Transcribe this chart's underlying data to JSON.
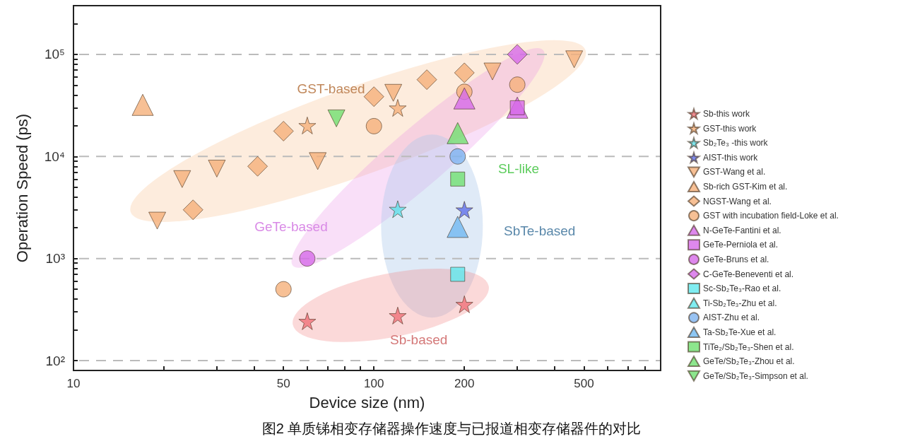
{
  "chart_data": {
    "type": "scatter",
    "xlabel": "Device size (nm)",
    "ylabel": "Operation Speed (ps)",
    "log": "xy",
    "legend": "right",
    "grid": "y",
    "xlim": [
      10,
      900
    ],
    "ylim": [
      80,
      300000
    ],
    "xticks": [
      10,
      {
        "value": 20,
        "label": null
      },
      {
        "value": 30,
        "label": null
      },
      {
        "value": 40,
        "label": null
      },
      50,
      {
        "value": 60,
        "label": null
      },
      {
        "value": 70,
        "label": null
      },
      {
        "value": 80,
        "label": null
      },
      {
        "value": 90,
        "label": null
      },
      100,
      200,
      {
        "value": 300,
        "label": null
      },
      {
        "value": 400,
        "label": null
      },
      500,
      {
        "value": 600,
        "label": null
      },
      {
        "value": 700,
        "label": null
      },
      {
        "value": 800,
        "label": null
      }
    ],
    "yticks": [
      {
        "value": 100,
        "label": "10²"
      },
      {
        "value": 200,
        "label": null
      },
      {
        "value": 300,
        "label": null
      },
      {
        "value": 400,
        "label": null
      },
      {
        "value": 500,
        "label": null
      },
      {
        "value": 600,
        "label": null
      },
      {
        "value": 700,
        "label": null
      },
      {
        "value": 800,
        "label": null
      },
      {
        "value": 900,
        "label": null
      },
      {
        "value": 1000,
        "label": "10³"
      },
      {
        "value": 2000,
        "label": null
      },
      {
        "value": 3000,
        "label": null
      },
      {
        "value": 4000,
        "label": null
      },
      {
        "value": 5000,
        "label": null
      },
      {
        "value": 6000,
        "label": null
      },
      {
        "value": 7000,
        "label": null
      },
      {
        "value": 8000,
        "label": null
      },
      {
        "value": 9000,
        "label": null
      },
      {
        "value": 10000,
        "label": "10⁴"
      },
      {
        "value": 20000,
        "label": null
      },
      {
        "value": 30000,
        "label": null
      },
      {
        "value": 40000,
        "label": null
      },
      {
        "value": 50000,
        "label": null
      },
      {
        "value": 60000,
        "label": null
      },
      {
        "value": 70000,
        "label": null
      },
      {
        "value": 80000,
        "label": null
      },
      {
        "value": 90000,
        "label": null
      },
      {
        "value": 100000,
        "label": "10⁵"
      },
      {
        "value": 200000,
        "label": null
      }
    ],
    "annotations": [
      "GST-based",
      "GeTe-based",
      "SL-like",
      "SbTe-based",
      "Sb-based",
      "图2 单质锑相变存储器操作速度与已报道相变存储器件的对比"
    ],
    "series": [
      {
        "name": "Sb-this work",
        "color": "#f07078",
        "marker": "star",
        "x": [
          60,
          120,
          200
        ],
        "values": [
          243,
          276,
          356
        ]
      },
      {
        "name": "GST-this work",
        "color": "#f5b07a",
        "marker": "star",
        "x": [
          60,
          120
        ],
        "values": [
          20100,
          29900
        ]
      },
      {
        "name": "Sb₂Te₃ -this work",
        "color": "#5fe0e8",
        "marker": "star",
        "x": [
          120
        ],
        "values": [
          3040
        ]
      },
      {
        "name": "AIST-this work",
        "color": "#6070e8",
        "marker": "star",
        "x": [
          200
        ],
        "values": [
          3000
        ]
      },
      {
        "name": "GST-Wang et al.",
        "color": "#f5b07a",
        "marker": "triangle-down",
        "x": [
          19,
          23,
          30,
          65,
          116,
          248,
          464
        ],
        "values": [
          2350,
          6000,
          7600,
          9000,
          42000,
          68000,
          89500
        ]
      },
      {
        "name": "Sb-rich GST-Kim et al.",
        "color": "#f5b07a",
        "marker": "triangle",
        "x": [
          17
        ],
        "values": [
          32000
        ]
      },
      {
        "name": "NGST-Wang et al.",
        "color": "#f5b07a",
        "marker": "diamond",
        "x": [
          25,
          41,
          50,
          100,
          150,
          200
        ],
        "values": [
          3000,
          8000,
          17700,
          38500,
          56500,
          66000
        ]
      },
      {
        "name": "GST with incubation field-Loke et al.",
        "color": "#f5b07a",
        "marker": "circle",
        "x": [
          50,
          100,
          200,
          300
        ],
        "values": [
          500,
          19800,
          43000,
          50500
        ]
      },
      {
        "name": "N-GeTe-Fantini et al.",
        "color": "#d66ae8",
        "marker": "triangle",
        "x": [
          200,
          300
        ],
        "values": [
          37000,
          30000
        ]
      },
      {
        "name": "GeTe-Perniola et al.",
        "color": "#d66ae8",
        "marker": "square",
        "x": [
          300
        ],
        "values": [
          30000
        ]
      },
      {
        "name": "GeTe-Bruns et al.",
        "color": "#d66ae8",
        "marker": "circle",
        "x": [
          60
        ],
        "values": [
          1000
        ]
      },
      {
        "name": "C-GeTe-Beneventi et al.",
        "color": "#d66ae8",
        "marker": "diamond",
        "x": [
          300
        ],
        "values": [
          100000
        ]
      },
      {
        "name": "Sc-Sb₂Te₃-Rao et al.",
        "color": "#60e8ee",
        "marker": "square",
        "x": [
          190
        ],
        "values": [
          700
        ]
      },
      {
        "name": "Ti-Sb₂Te₃-Zhu et al.",
        "color": "#60e8ee",
        "marker": "triangle"
      },
      {
        "name": "AIST-Zhu et al.",
        "color": "#80b4f0",
        "marker": "circle",
        "x": [
          190
        ],
        "values": [
          10000
        ]
      },
      {
        "name": "Ta-Sb₂Te-Xue et al.",
        "color": "#70b8f0",
        "marker": "triangle",
        "x": [
          190
        ],
        "values": [
          2040
        ]
      },
      {
        "name": "TiTe₂/Sb₂Te₃-Shen et al.",
        "color": "#70e070",
        "marker": "square",
        "x": [
          190
        ],
        "values": [
          6000
        ]
      },
      {
        "name": "GeTe/Sb₂Te₃-Zhou et al.",
        "color": "#70e070",
        "marker": "triangle",
        "x": [
          190
        ],
        "values": [
          16900
        ]
      },
      {
        "name": "GeTe/Sb₂Te₃-Simpson et al.",
        "color": "#70e070",
        "marker": "triangle-down",
        "x": [
          75
        ],
        "values": [
          23600
        ]
      }
    ]
  }
}
